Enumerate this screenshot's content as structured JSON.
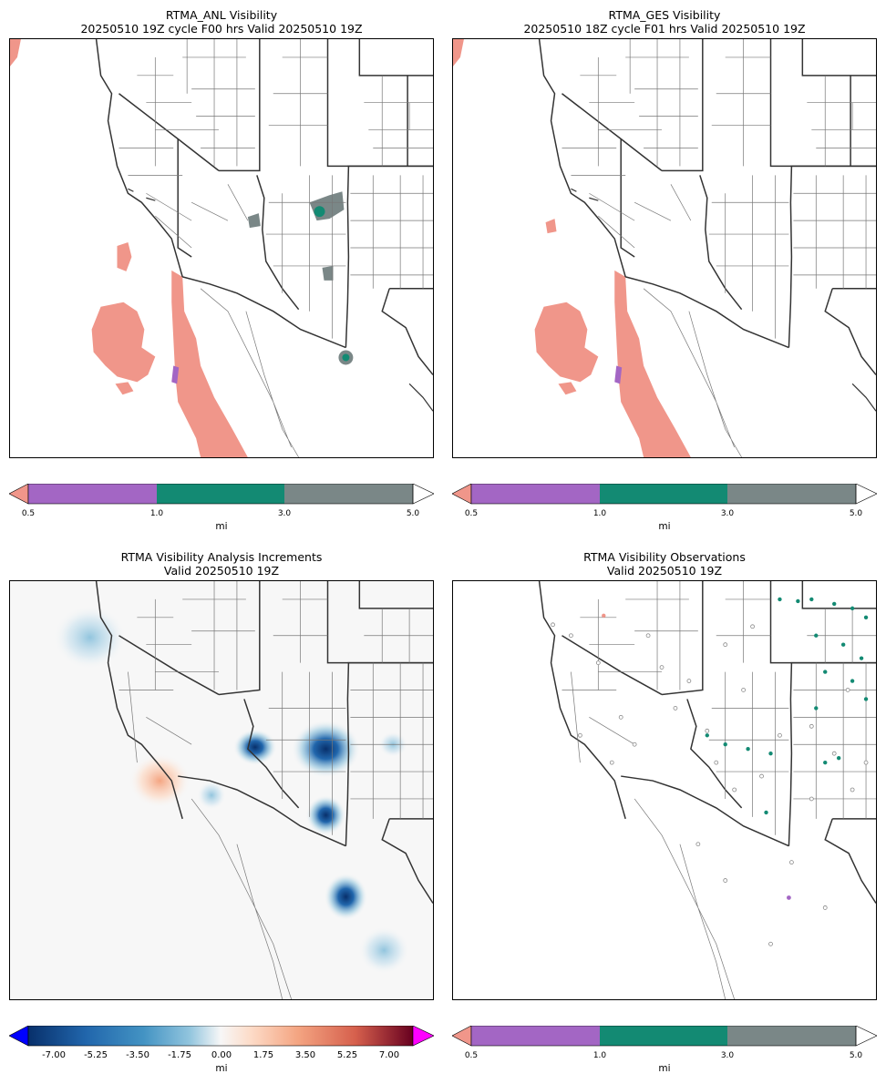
{
  "panels": [
    {
      "title_line1": "RTMA_ANL Visibility",
      "title_line2": "20250510 19Z cycle F00 hrs Valid 20250510 19Z"
    },
    {
      "title_line1": "RTMA_GES Visibility",
      "title_line2": "20250510 18Z cycle F01 hrs Valid 20250510 19Z"
    },
    {
      "title_line1": "RTMA Visibility Analysis Increments",
      "title_line2": "Valid 20250510 19Z"
    },
    {
      "title_line1": "RTMA Visibility Observations",
      "title_line2": "Valid 20250510 19Z"
    }
  ],
  "visibility_colorbar": {
    "ticks": [
      "0.5",
      "1.0",
      "3.0",
      "5.0"
    ],
    "unit": "mi",
    "colors": {
      "under": "#f0968a",
      "c1": "#a366c4",
      "c2": "#138a73",
      "c3": "#7a8787",
      "over": "#ffffff"
    }
  },
  "increment_colorbar": {
    "ticks": [
      "-7.00",
      "-5.25",
      "-3.50",
      "-1.75",
      "0.00",
      "1.75",
      "3.50",
      "5.25",
      "7.00"
    ],
    "unit": "mi",
    "colors": {
      "under": "#0000ff",
      "over": "#ff00ff",
      "low": "#08306b",
      "mid": "#f7f7f7",
      "high": "#67001f"
    }
  },
  "map_colors": {
    "state_border": "#333333",
    "county_border": "#777777",
    "fog_salmon": "#f0968a",
    "vis_green": "#138a73",
    "vis_gray": "#7a8787",
    "vis_purple": "#a366c4",
    "increment_blue": "#08519c",
    "increment_red": "#f4a582"
  }
}
